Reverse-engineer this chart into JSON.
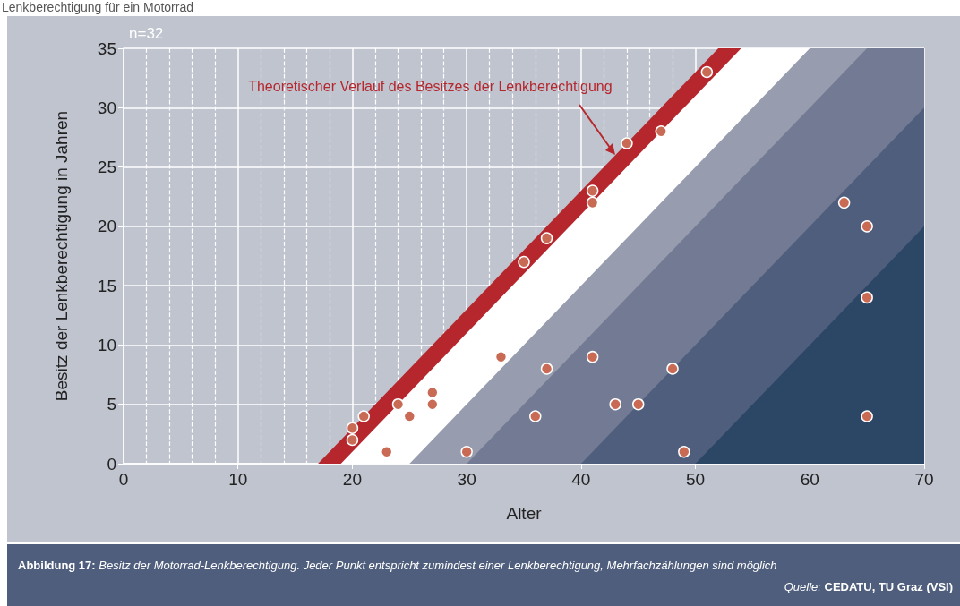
{
  "chart_data": {
    "type": "scatter",
    "title": "Lenkberechtigung für ein Motorrad",
    "xlabel": "Alter",
    "ylabel": "Besitz der Lenkberechtigung in Jahren",
    "xlim": [
      0,
      70
    ],
    "xticks": [
      0,
      10,
      20,
      30,
      40,
      50,
      60,
      70
    ],
    "ylim": [
      0,
      35
    ],
    "yticks": [
      0,
      5,
      10,
      15,
      20,
      25,
      30,
      35
    ],
    "grid": true,
    "series": [
      {
        "type": "area",
        "color": "#b5272d",
        "x": [
          17,
          52,
          70
        ],
        "values": [
          0,
          35,
          35
        ]
      },
      {
        "type": "area",
        "color": "#ffffff",
        "x": [
          19,
          54,
          70
        ],
        "values": [
          0,
          35,
          35
        ]
      },
      {
        "type": "area",
        "color": "#979cae",
        "x": [
          25,
          60,
          70
        ],
        "values": [
          0,
          35,
          35
        ]
      },
      {
        "type": "area",
        "color": "#737a93",
        "x": [
          30,
          65,
          70
        ],
        "values": [
          0,
          35,
          35
        ]
      },
      {
        "type": "area",
        "color": "#4f5e7c",
        "x": [
          40,
          70
        ],
        "values": [
          0,
          30
        ]
      },
      {
        "type": "area",
        "color": "#2c4766",
        "x": [
          50,
          70
        ],
        "values": [
          0,
          20
        ]
      },
      {
        "color": "#c96a55",
        "x": [
          20,
          20,
          21,
          23,
          24,
          25,
          27,
          27,
          30,
          33,
          35,
          36,
          37,
          37,
          41,
          41,
          41,
          43,
          44,
          45,
          47,
          48,
          49,
          51,
          63,
          65,
          65,
          65
        ],
        "values": [
          3,
          2,
          4,
          1,
          5,
          4,
          6,
          5,
          1,
          9,
          17,
          4,
          19,
          8,
          23,
          22,
          9,
          5,
          27,
          5,
          28,
          8,
          1,
          33,
          22,
          20,
          14,
          4
        ]
      }
    ],
    "annotations": [
      "n=32",
      {
        "text": "Theoretischer Verlauf des Besitzes der Lenkberechtigung",
        "x": 43,
        "y": 26
      },
      "Abbildung 17: Besitz der Motorrad-Lenkberechtigung. Jeder Punkt entspricht zumindest einer Lenkberechtigung, Mehrfachzählungen sind möglich",
      "Quelle: CEDATU, TU Graz (VSI)"
    ]
  }
}
